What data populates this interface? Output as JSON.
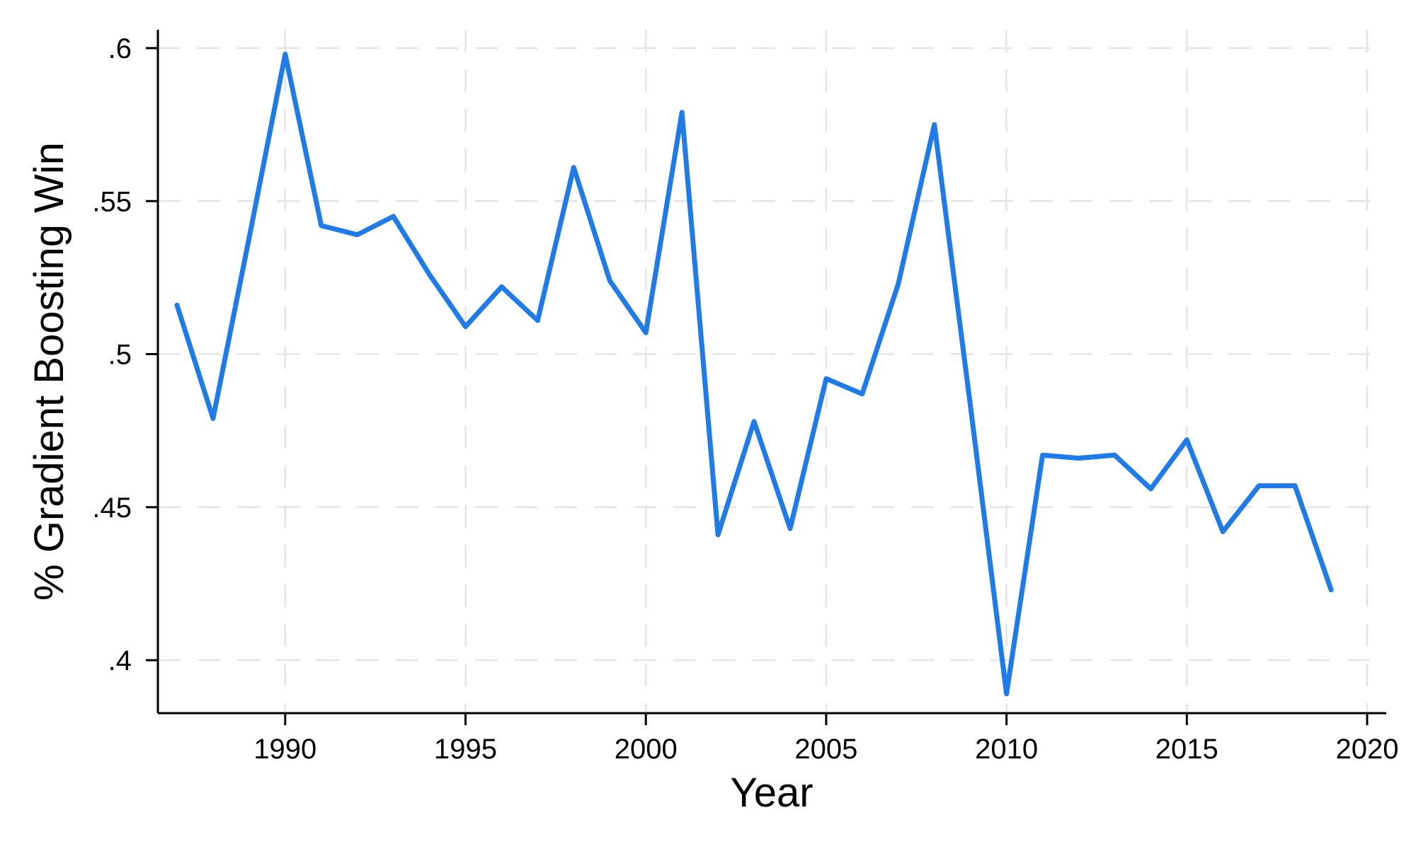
{
  "chart_data": {
    "type": "line",
    "title": "",
    "xlabel": "Year",
    "ylabel": "% Gradient Boosting Win",
    "x": [
      1987,
      1988,
      1989,
      1990,
      1991,
      1992,
      1993,
      1994,
      1995,
      1996,
      1997,
      1998,
      1999,
      2000,
      2001,
      2002,
      2003,
      2004,
      2005,
      2006,
      2007,
      2008,
      2009,
      2010,
      2011,
      2012,
      2013,
      2014,
      2015,
      2016,
      2017,
      2018,
      2019
    ],
    "series": [
      {
        "name": "% Gradient Boosting Win",
        "values": [
          0.516,
          0.479,
          0.538,
          0.598,
          0.542,
          0.539,
          0.545,
          0.526,
          0.509,
          0.522,
          0.511,
          0.561,
          0.524,
          0.507,
          0.579,
          0.441,
          0.478,
          0.443,
          0.492,
          0.487,
          0.523,
          0.575,
          0.483,
          0.389,
          0.467,
          0.466,
          0.467,
          0.456,
          0.472,
          0.442,
          0.457,
          0.457,
          0.423
        ]
      }
    ],
    "xticks": {
      "values": [
        1990,
        1995,
        2000,
        2005,
        2010,
        2015,
        2020
      ],
      "labels": [
        "1990",
        "1995",
        "2000",
        "2005",
        "2010",
        "2015",
        "2020"
      ]
    },
    "yticks": {
      "values": [
        0.4,
        0.45,
        0.5,
        0.55,
        0.6
      ],
      "labels": [
        ".4",
        ".45",
        ".5",
        ".55",
        ".6"
      ]
    },
    "xlim": [
      1986.47,
      2020.53
    ],
    "ylim": [
      0.3827,
      0.606
    ],
    "grid": "both-dashed",
    "legend": "none",
    "colors": {
      "line": "#1e7be8",
      "axis": "#000000",
      "grid": "#e5e5e5",
      "text": "#000000",
      "background": "#ffffff"
    }
  }
}
